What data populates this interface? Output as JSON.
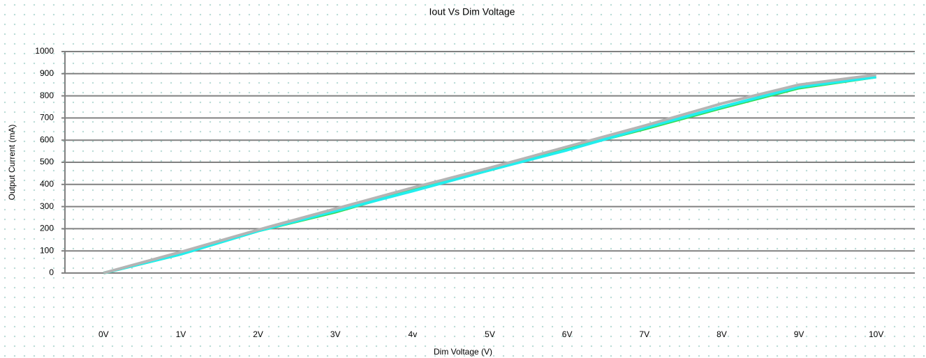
{
  "chart_data": {
    "type": "line",
    "title": "Iout Vs Dim Voltage",
    "x_label": "Dim Voltage (V)",
    "y_label": "Output Current (mA)",
    "categories": [
      "0V",
      "1V",
      "2V",
      "3V",
      "4v",
      "5V",
      "6V",
      "7V",
      "8V",
      "9V",
      "10V"
    ],
    "series": [
      {
        "color": "#33dd55",
        "values": [
          0,
          85,
          190,
          275,
          375,
          465,
          560,
          650,
          745,
          835,
          885
        ]
      },
      {
        "color": "#22eeee",
        "values": [
          0,
          85,
          190,
          280,
          370,
          465,
          555,
          655,
          750,
          840,
          885
        ]
      },
      {
        "color": "#b4b4b4",
        "values": [
          0,
          95,
          195,
          290,
          385,
          475,
          570,
          665,
          765,
          850,
          895
        ]
      }
    ],
    "ylim": [
      0,
      1000
    ],
    "yticks": [
      0,
      100,
      200,
      300,
      400,
      500,
      600,
      700,
      800,
      900,
      1000
    ],
    "grid": true
  }
}
